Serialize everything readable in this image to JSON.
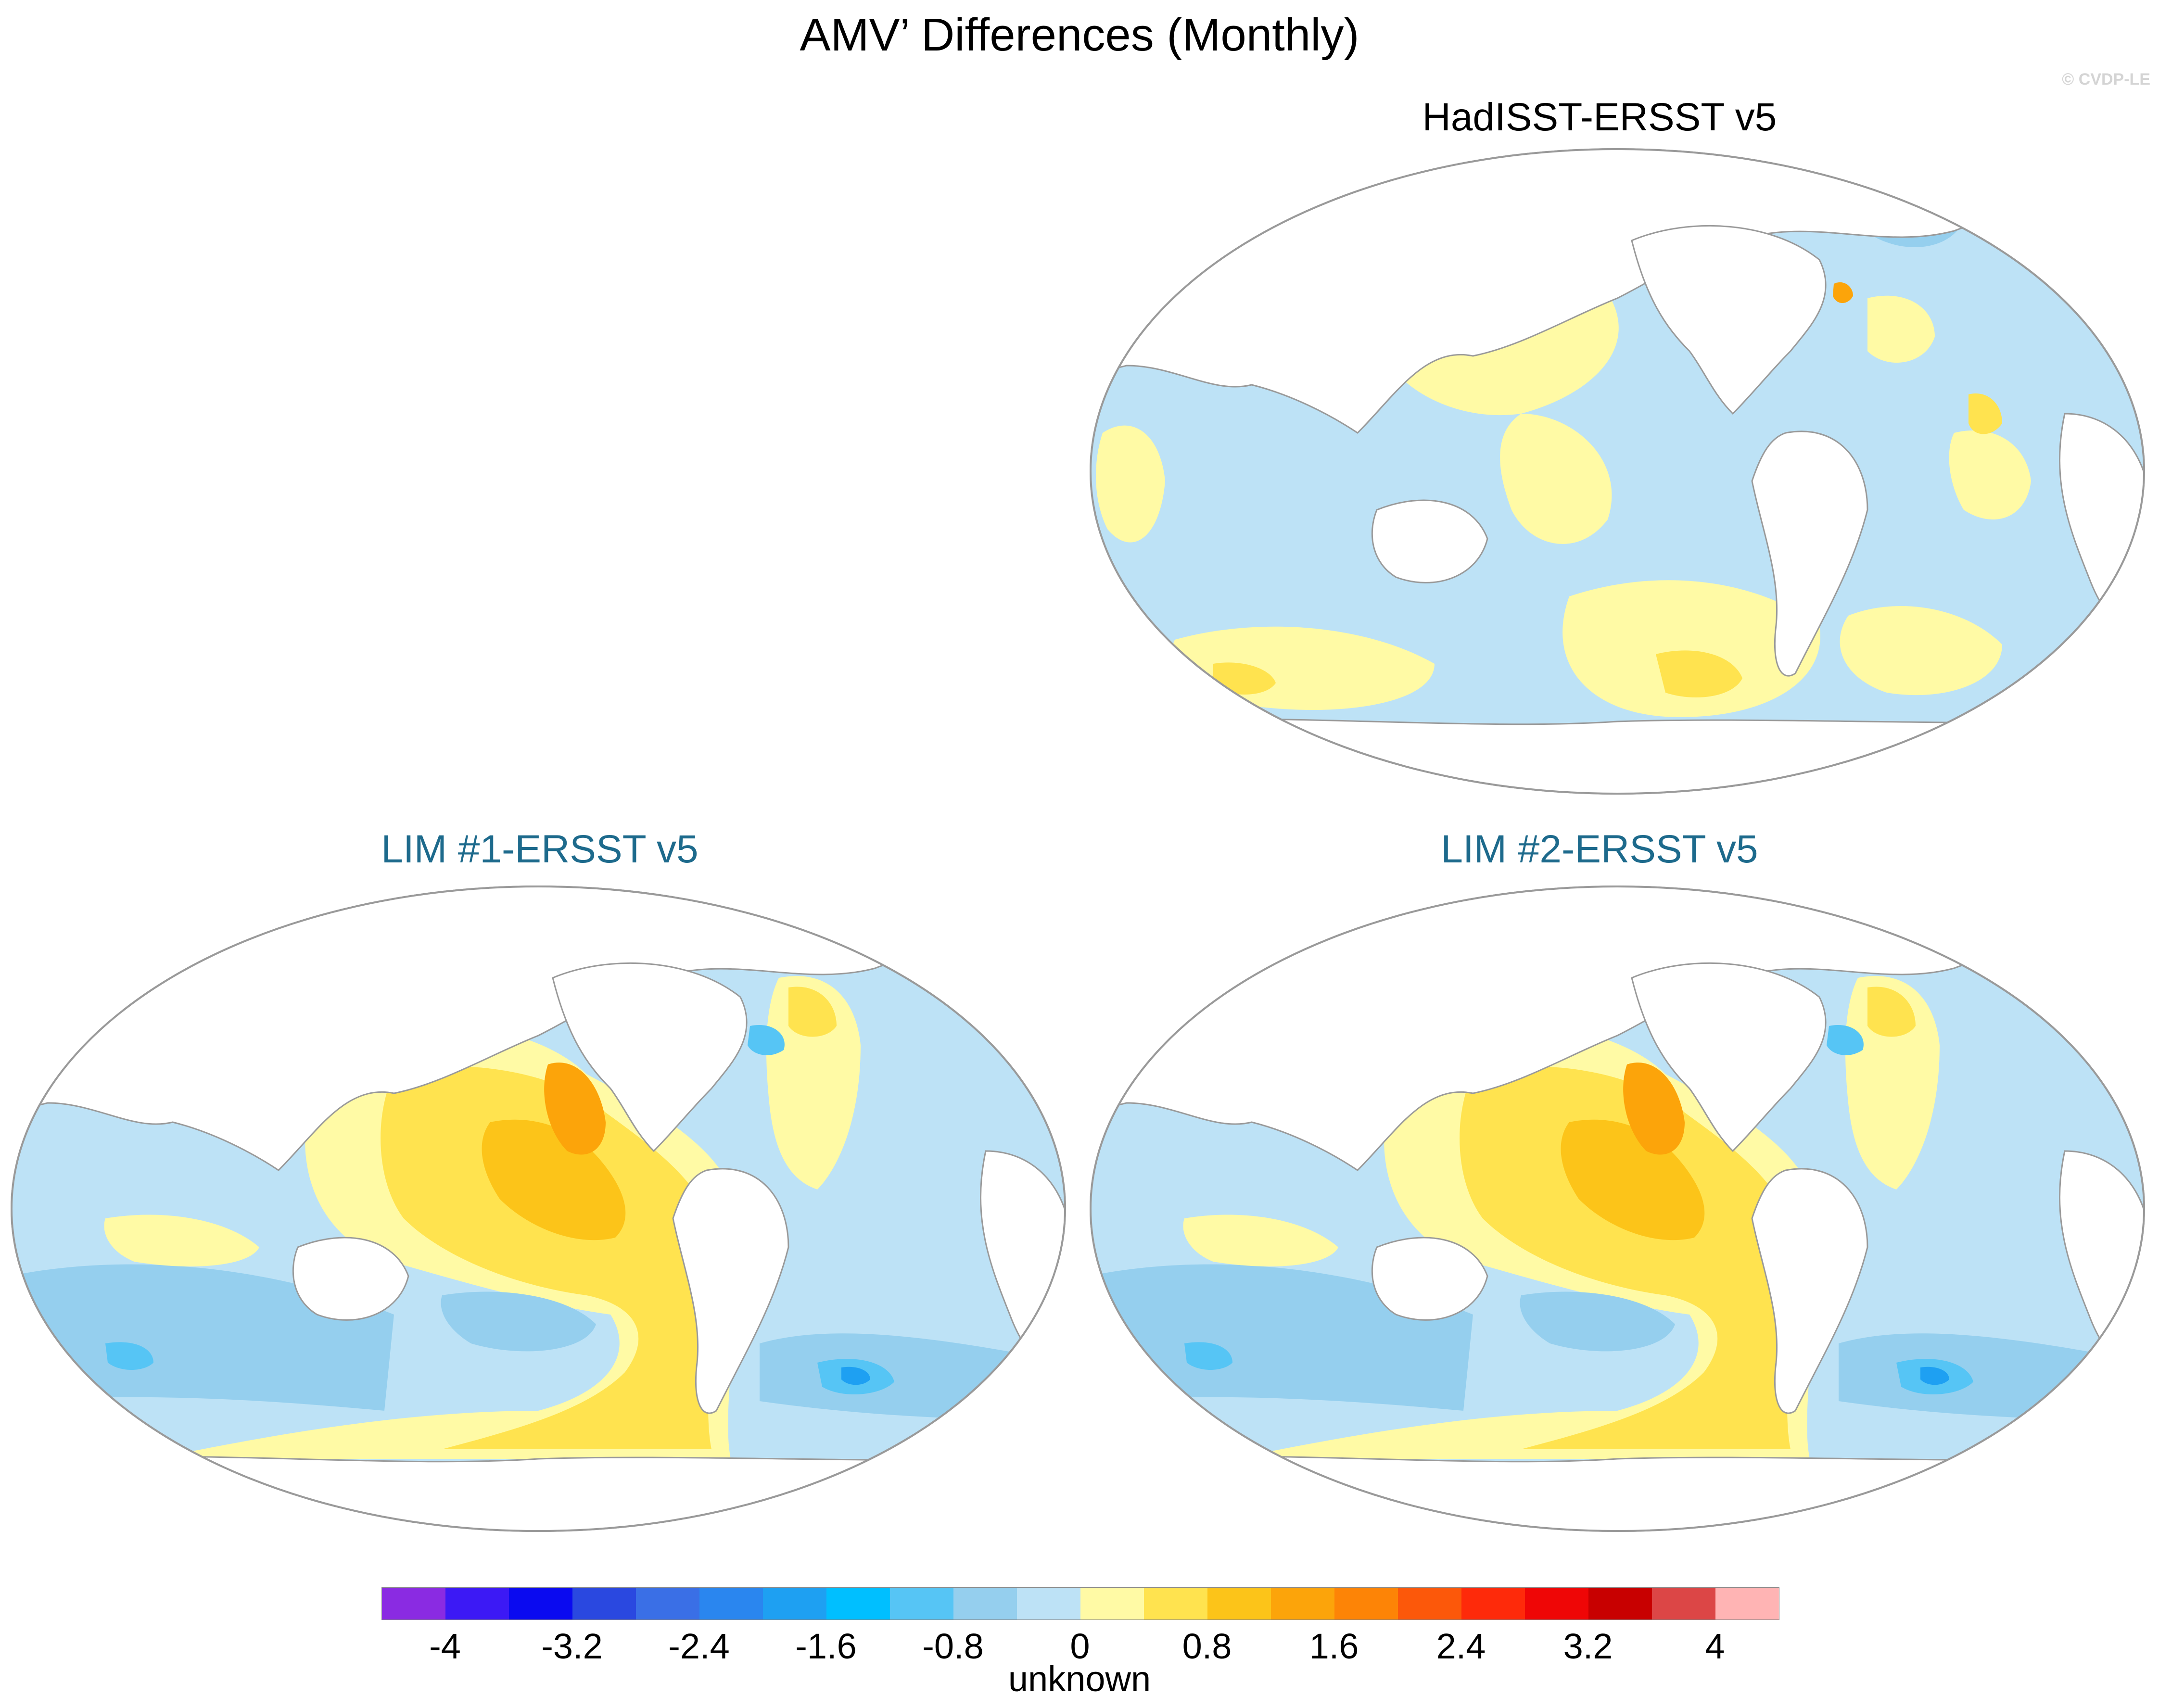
{
  "title": "AMV’ Differences (Monthly)",
  "copyright": "© CVDP-LE",
  "panels": [
    {
      "id": "hadisst",
      "title": "HadISST-ERSST v5"
    },
    {
      "id": "lim1",
      "title": "LIM #1-ERSST v5"
    },
    {
      "id": "lim2",
      "title": "LIM #2-ERSST v5"
    }
  ],
  "colorbar": {
    "colors": [
      "#8a2be2",
      "#3c19f5",
      "#0a0af0",
      "#2a48e0",
      "#3a6fe6",
      "#2a86ef",
      "#1ea0f2",
      "#00bfff",
      "#56c5f5",
      "#95cfee",
      "#bde2f6",
      "#fffaa5",
      "#ffe34f",
      "#fcc419",
      "#fca40a",
      "#fd8406",
      "#fc580a",
      "#fe2a0a",
      "#ef0606",
      "#c80000",
      "#dc4646",
      "#ffb4b4"
    ],
    "tick_labels": [
      "-4",
      "-3.2",
      "-2.4",
      "-1.6",
      "-0.8",
      "0",
      "0.8",
      "1.6",
      "2.4",
      "3.2",
      "4"
    ],
    "units": "unknown"
  },
  "map_colors": {
    "neutral_blue": "#bde2f6",
    "light_blue": "#95cfee",
    "medium_blue": "#56c5f5",
    "strong_blue": "#1ea0f2",
    "light_yellow": "#fffaa5",
    "yellow": "#ffe34f",
    "gold": "#fcc419",
    "orange": "#fca40a",
    "dark_orange": "#fd8406",
    "land": "#ffffff",
    "coast": "#9a9a9a"
  }
}
